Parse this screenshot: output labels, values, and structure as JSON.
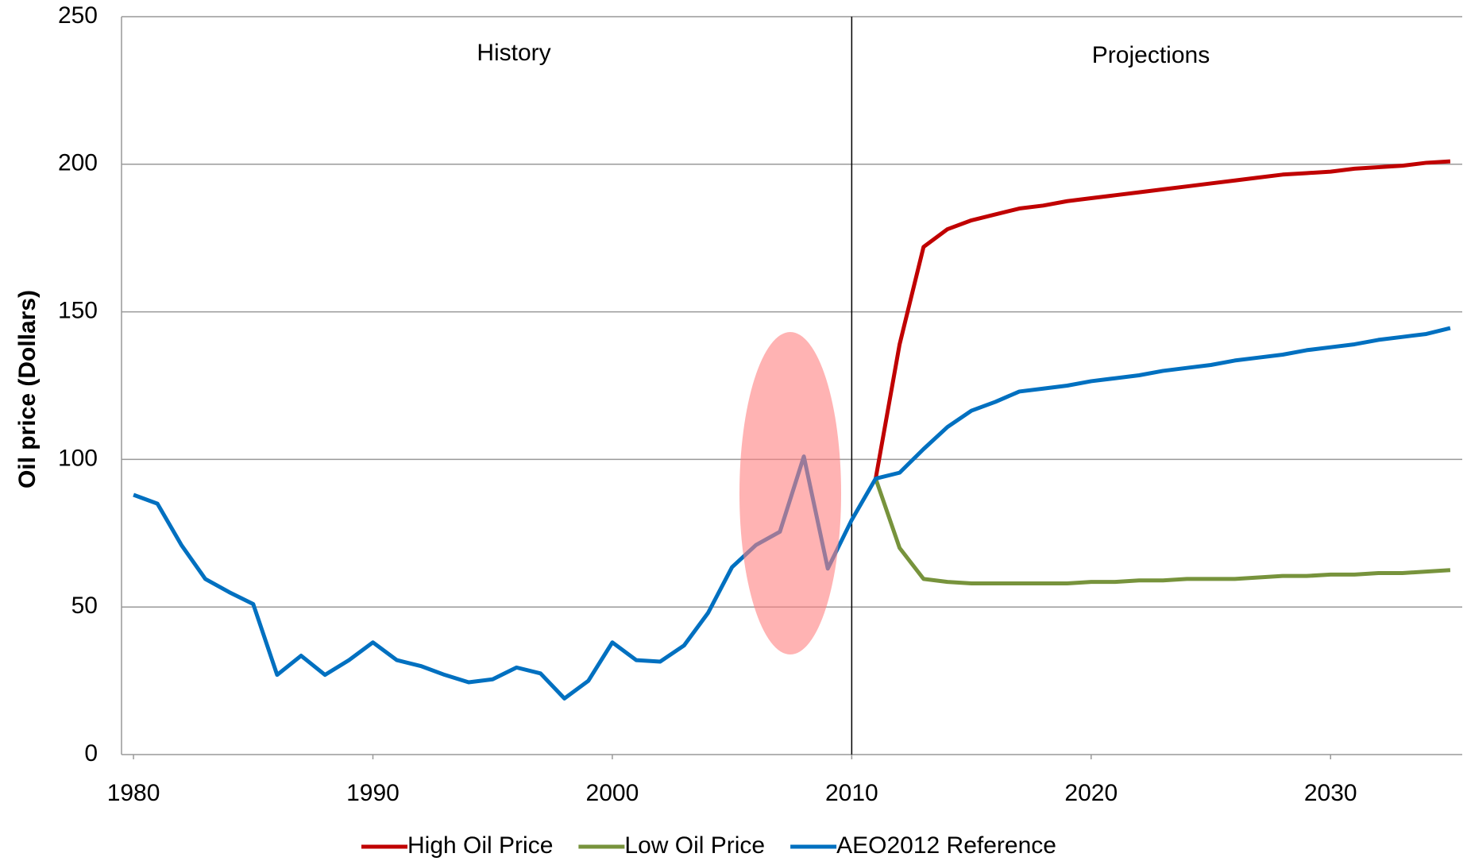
{
  "chart_data": {
    "type": "line",
    "y_label": "Oil price (Dollars)",
    "annotations": [
      "History",
      "Projections"
    ],
    "divider_x": 2010,
    "x": [
      1980,
      1981,
      1982,
      1983,
      1984,
      1985,
      1986,
      1987,
      1988,
      1989,
      1990,
      1991,
      1992,
      1993,
      1994,
      1995,
      1996,
      1997,
      1998,
      1999,
      2000,
      2001,
      2002,
      2003,
      2004,
      2005,
      2006,
      2007,
      2008,
      2009,
      2010,
      2011,
      2012,
      2013,
      2014,
      2015,
      2016,
      2017,
      2018,
      2019,
      2020,
      2021,
      2022,
      2023,
      2024,
      2025,
      2026,
      2027,
      2028,
      2029,
      2030,
      2031,
      2032,
      2033,
      2034,
      2035
    ],
    "series": [
      {
        "name": "High Oil Price",
        "color": "#c00000",
        "values": [
          null,
          null,
          null,
          null,
          null,
          null,
          null,
          null,
          null,
          null,
          null,
          null,
          null,
          null,
          null,
          null,
          null,
          null,
          null,
          null,
          null,
          null,
          null,
          null,
          null,
          null,
          null,
          null,
          null,
          null,
          null,
          93.5,
          139,
          172,
          178,
          181,
          183,
          185,
          186,
          187.5,
          188.5,
          189.5,
          190.5,
          191.5,
          192.5,
          193.5,
          194.5,
          195.5,
          196.5,
          197,
          197.5,
          198.5,
          199,
          199.5,
          200.5,
          201
        ]
      },
      {
        "name": "Low Oil Price",
        "color": "#77933c",
        "values": [
          null,
          null,
          null,
          null,
          null,
          null,
          null,
          null,
          null,
          null,
          null,
          null,
          null,
          null,
          null,
          null,
          null,
          null,
          null,
          null,
          null,
          null,
          null,
          null,
          null,
          null,
          null,
          null,
          null,
          null,
          null,
          93.5,
          70,
          59.5,
          58.5,
          58,
          58,
          58,
          58,
          58,
          58.5,
          58.5,
          59,
          59,
          59.5,
          59.5,
          59.5,
          60,
          60.5,
          60.5,
          61,
          61,
          61.5,
          61.5,
          62,
          62.5
        ]
      },
      {
        "name": "AEO2012 Reference",
        "color": "#0070c0",
        "values": [
          88,
          85,
          71,
          59.5,
          55,
          51,
          27,
          33.5,
          27,
          32,
          38,
          32,
          30,
          27,
          24.5,
          25.5,
          29.5,
          27.5,
          19,
          25,
          38,
          32,
          31.5,
          37,
          48,
          63.5,
          71,
          75.5,
          101,
          63,
          79.5,
          93.5,
          95.5,
          103.5,
          111,
          116.5,
          119.5,
          123,
          124,
          125,
          126.5,
          127.5,
          128.5,
          130,
          131,
          132,
          133.5,
          134.5,
          135.5,
          137,
          138,
          139,
          140.5,
          141.5,
          142.5,
          144.5
        ]
      }
    ],
    "xlim": [
      1979.5,
      2035.5
    ],
    "xticks": [
      1980,
      1990,
      2000,
      2010,
      2020,
      2030
    ],
    "ylim": [
      0,
      250
    ],
    "yticks": [
      0,
      50,
      100,
      150,
      200,
      250
    ],
    "grid": true,
    "legend": "bottom"
  }
}
